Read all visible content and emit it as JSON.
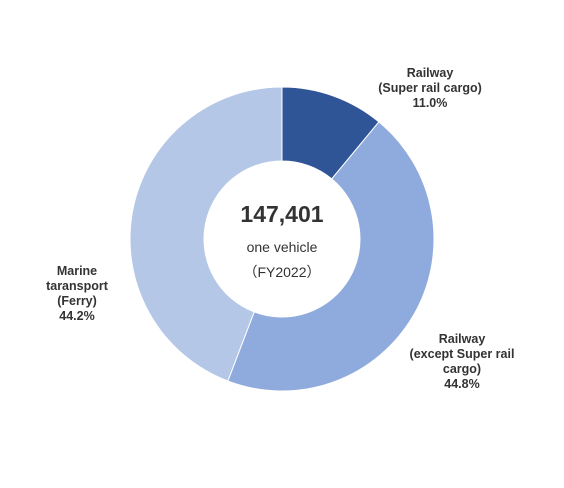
{
  "chart_data": {
    "type": "pie",
    "variant": "donut",
    "center": {
      "total": "147,401",
      "unit": "one vehicle",
      "period": "（FY2022）"
    },
    "slices": [
      {
        "label_lines": [
          "Railway",
          "(Super rail cargo)"
        ],
        "value": 11.0,
        "value_label": "11.0%",
        "color": "#2f5597"
      },
      {
        "label_lines": [
          "Railway",
          "(except Super rail",
          "cargo)"
        ],
        "value": 44.8,
        "value_label": "44.8%",
        "color": "#8faadc"
      },
      {
        "label_lines": [
          "Marine",
          "taransport",
          "(Ferry)"
        ],
        "value": 44.2,
        "value_label": "44.2%",
        "color": "#b4c7e7"
      }
    ]
  }
}
